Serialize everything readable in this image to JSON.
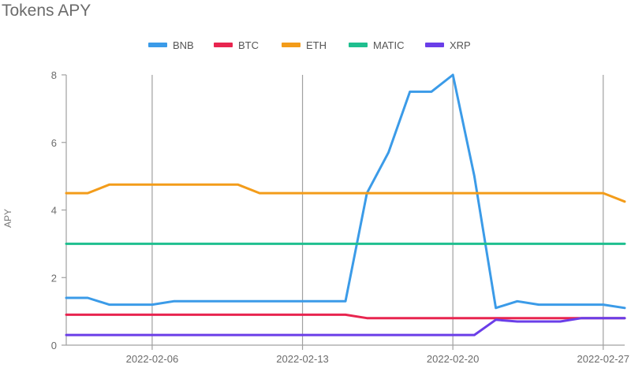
{
  "chart_data": {
    "type": "line",
    "title": "Tokens APY",
    "xlabel": "",
    "ylabel": "APY",
    "x": [
      "2022-02-02",
      "2022-02-03",
      "2022-02-04",
      "2022-02-05",
      "2022-02-06",
      "2022-02-07",
      "2022-02-08",
      "2022-02-09",
      "2022-02-10",
      "2022-02-11",
      "2022-02-12",
      "2022-02-13",
      "2022-02-14",
      "2022-02-15",
      "2022-02-16",
      "2022-02-17",
      "2022-02-18",
      "2022-02-19",
      "2022-02-20",
      "2022-02-21",
      "2022-02-22",
      "2022-02-23",
      "2022-02-24",
      "2022-02-25",
      "2022-02-26",
      "2022-02-27",
      "2022-02-28"
    ],
    "x_ticks": [
      "2022-02-06",
      "2022-02-13",
      "2022-02-20",
      "2022-02-27"
    ],
    "ylim": [
      0,
      8
    ],
    "y_ticks": [
      0,
      2,
      4,
      6,
      8
    ],
    "grid": "vertical",
    "legend_position": "top",
    "series": [
      {
        "name": "BNB",
        "color": "#3b9be8",
        "values": [
          1.4,
          1.4,
          1.2,
          1.2,
          1.2,
          1.3,
          1.3,
          1.3,
          1.3,
          1.3,
          1.3,
          1.3,
          1.3,
          1.3,
          4.5,
          5.7,
          7.5,
          7.5,
          8.0,
          5.0,
          1.1,
          1.3,
          1.2,
          1.2,
          1.2,
          1.2,
          1.1
        ]
      },
      {
        "name": "BTC",
        "color": "#e8254f",
        "values": [
          0.9,
          0.9,
          0.9,
          0.9,
          0.9,
          0.9,
          0.9,
          0.9,
          0.9,
          0.9,
          0.9,
          0.9,
          0.9,
          0.9,
          0.8,
          0.8,
          0.8,
          0.8,
          0.8,
          0.8,
          0.8,
          0.8,
          0.8,
          0.8,
          0.8,
          0.8,
          0.8
        ]
      },
      {
        "name": "ETH",
        "color": "#f39c1a",
        "values": [
          4.5,
          4.5,
          4.75,
          4.75,
          4.75,
          4.75,
          4.75,
          4.75,
          4.75,
          4.5,
          4.5,
          4.5,
          4.5,
          4.5,
          4.5,
          4.5,
          4.5,
          4.5,
          4.5,
          4.5,
          4.5,
          4.5,
          4.5,
          4.5,
          4.5,
          4.5,
          4.25
        ]
      },
      {
        "name": "MATIC",
        "color": "#1fbf8f",
        "values": [
          3,
          3,
          3,
          3,
          3,
          3,
          3,
          3,
          3,
          3,
          3,
          3,
          3,
          3,
          3,
          3,
          3,
          3,
          3,
          3,
          3,
          3,
          3,
          3,
          3,
          3,
          3
        ]
      },
      {
        "name": "XRP",
        "color": "#6a3ee8",
        "values": [
          0.3,
          0.3,
          0.3,
          0.3,
          0.3,
          0.3,
          0.3,
          0.3,
          0.3,
          0.3,
          0.3,
          0.3,
          0.3,
          0.3,
          0.3,
          0.3,
          0.3,
          0.3,
          0.3,
          0.3,
          0.75,
          0.7,
          0.7,
          0.7,
          0.8,
          0.8,
          0.8
        ]
      }
    ]
  }
}
